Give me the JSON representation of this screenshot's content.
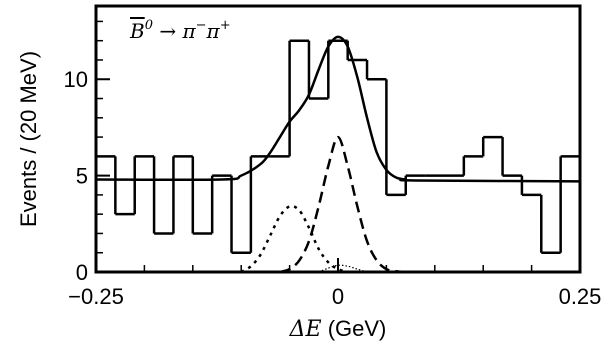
{
  "chart_data": {
    "type": "step-histogram-with-fit",
    "annotation": {
      "base": "B",
      "sup": "0",
      "arrow": "→",
      "product1": "π",
      "product1_sup": "−",
      "product2": "π",
      "product2_sup": "+"
    },
    "xlabel_symbol": "ΔE",
    "xlabel_unit": "(GeV)",
    "ylabel": "Events / (20 MeV)",
    "xlim": [
      -0.25,
      0.25
    ],
    "ylim": [
      0,
      13.8
    ],
    "x_ticks": [
      {
        "value": -0.25,
        "label": "−0.25"
      },
      {
        "value": 0,
        "label": "0"
      },
      {
        "value": 0.25,
        "label": "0.25"
      }
    ],
    "y_ticks": [
      {
        "value": 0,
        "label": "0"
      },
      {
        "value": 5,
        "label": "5"
      },
      {
        "value": 10,
        "label": "10"
      }
    ],
    "histogram": {
      "bin_edges": [
        -0.25,
        -0.23,
        -0.21,
        -0.19,
        -0.17,
        -0.15,
        -0.13,
        -0.11,
        -0.09,
        -0.07,
        -0.05,
        -0.03,
        -0.01,
        0.01,
        0.03,
        0.05,
        0.07,
        0.09,
        0.11,
        0.13,
        0.15,
        0.17,
        0.19,
        0.21,
        0.23,
        0.25
      ],
      "counts": [
        6,
        3,
        6,
        2,
        6,
        2,
        5,
        1,
        6,
        6,
        12,
        9,
        12,
        11,
        10,
        4,
        5,
        5,
        5,
        6,
        7,
        5,
        4,
        1,
        6
      ]
    },
    "curves": [
      {
        "style": "solid",
        "x": [
          -0.25,
          -0.12,
          -0.1,
          -0.08,
          -0.07,
          -0.06,
          -0.05,
          -0.04,
          -0.03,
          -0.02,
          -0.01,
          0.0,
          0.01,
          0.02,
          0.03,
          0.04,
          0.05,
          0.06,
          0.07,
          0.08,
          0.25
        ],
        "y": [
          4.8,
          4.8,
          5.0,
          5.6,
          6.2,
          7.0,
          7.8,
          8.4,
          9.2,
          10.5,
          11.7,
          12.2,
          11.7,
          10.1,
          8.0,
          6.2,
          5.3,
          4.9,
          4.8,
          4.75,
          4.7
        ]
      },
      {
        "style": "dashed",
        "x": [
          -0.06,
          -0.05,
          -0.04,
          -0.03,
          -0.02,
          -0.01,
          0.0,
          0.01,
          0.02,
          0.03,
          0.04,
          0.05,
          0.06,
          0.07
        ],
        "y": [
          0.0,
          0.15,
          0.6,
          1.6,
          3.4,
          5.5,
          7.0,
          5.5,
          3.4,
          1.6,
          0.6,
          0.15,
          0.04,
          0.0
        ]
      },
      {
        "style": "dotted",
        "x": [
          -0.1,
          -0.09,
          -0.08,
          -0.07,
          -0.06,
          -0.05,
          -0.04,
          -0.03,
          -0.02,
          -0.01,
          0.0,
          0.01
        ],
        "y": [
          0.0,
          0.3,
          0.9,
          1.9,
          2.9,
          3.4,
          3.2,
          2.3,
          1.2,
          0.5,
          0.15,
          0.0
        ]
      },
      {
        "style": "fine-dotted",
        "x": [
          -0.02,
          -0.01,
          0.0,
          0.01,
          0.02,
          0.03
        ],
        "y": [
          0.0,
          0.2,
          0.35,
          0.3,
          0.15,
          0.0
        ]
      }
    ]
  }
}
